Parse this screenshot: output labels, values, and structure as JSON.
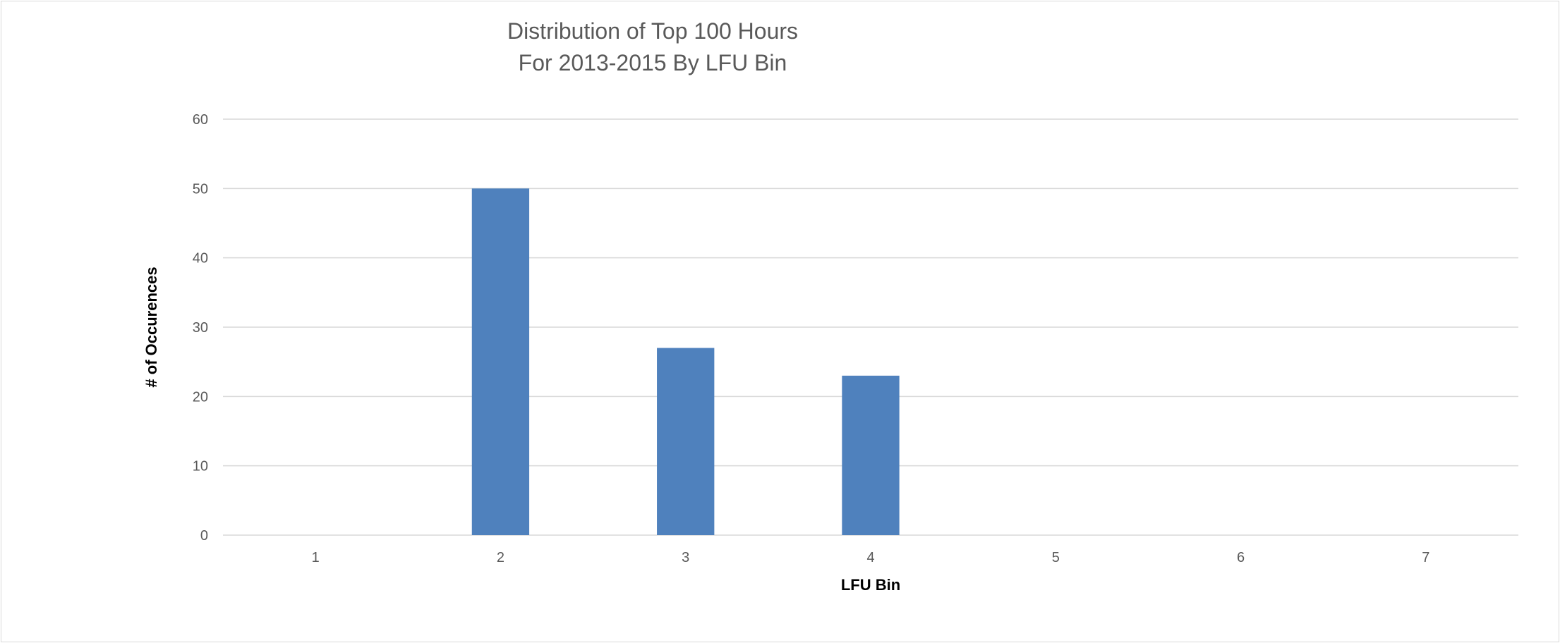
{
  "chart_data": {
    "type": "bar",
    "title": [
      "Distribution of Top 100 Hours",
      "For 2013-2015 By LFU Bin"
    ],
    "xlabel": "LFU Bin",
    "ylabel": "# of Occurences",
    "categories": [
      "1",
      "2",
      "3",
      "4",
      "5",
      "6",
      "7"
    ],
    "values": [
      0,
      50,
      27,
      23,
      0,
      0,
      0
    ],
    "ylim": [
      0,
      60
    ],
    "yticks": [
      0,
      10,
      20,
      30,
      40,
      50,
      60
    ],
    "grid": true,
    "legend": "none",
    "colors": {
      "bar": "#4f81bd",
      "grid": "#d9d9d9",
      "tick_text": "#595959",
      "axis_title": "#000000"
    }
  }
}
